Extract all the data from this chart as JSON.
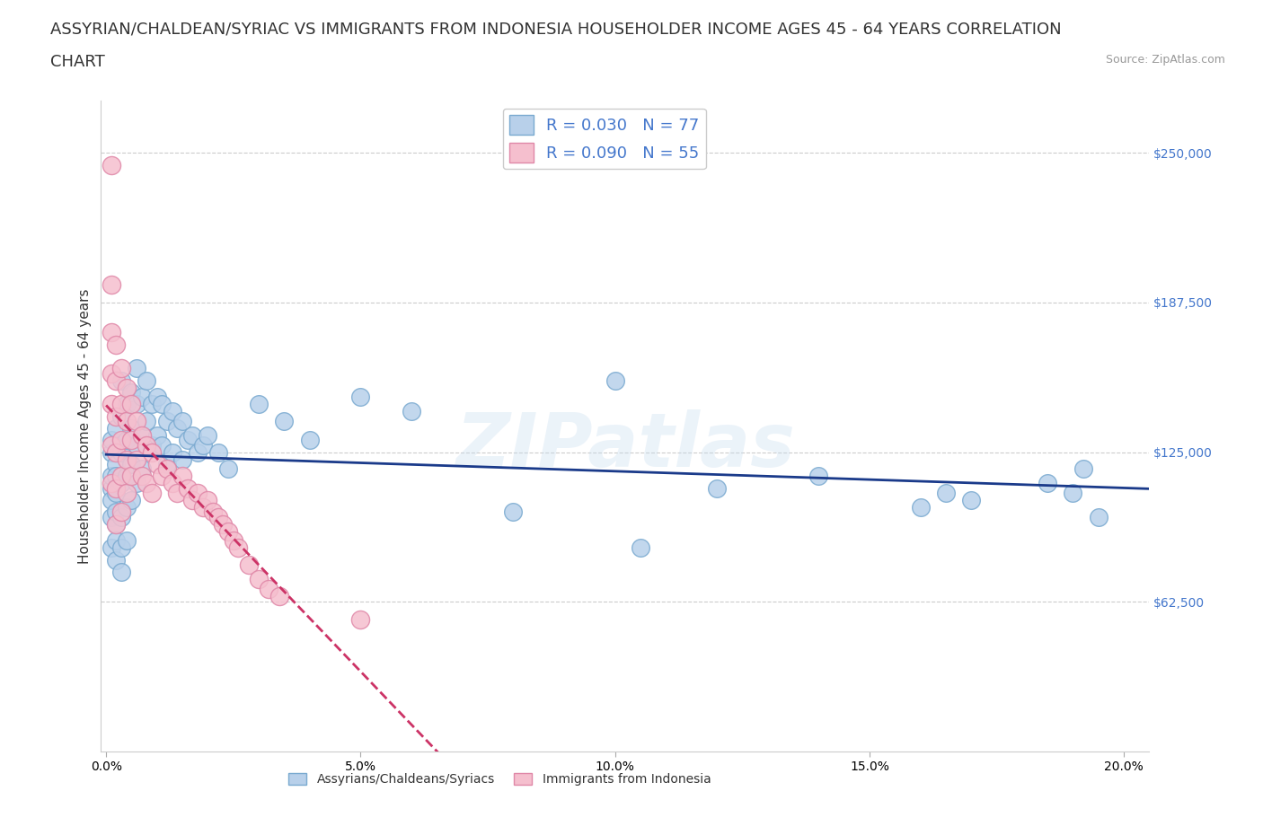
{
  "title_line1": "ASSYRIAN/CHALDEAN/SYRIAC VS IMMIGRANTS FROM INDONESIA HOUSEHOLDER INCOME AGES 45 - 64 YEARS CORRELATION",
  "title_line2": "CHART",
  "source": "Source: ZipAtlas.com",
  "ylabel": "Householder Income Ages 45 - 64 years",
  "xlim": [
    -0.001,
    0.205
  ],
  "ylim": [
    0,
    272000
  ],
  "yticks": [
    0,
    62500,
    125000,
    187500,
    250000
  ],
  "ytick_labels": [
    "",
    "$62,500",
    "$125,000",
    "$187,500",
    "$250,000"
  ],
  "xticks": [
    0.0,
    0.05,
    0.1,
    0.15,
    0.2
  ],
  "xtick_labels": [
    "0.0%",
    "5.0%",
    "10.0%",
    "15.0%",
    "20.0%"
  ],
  "blue_color": "#b8d0ea",
  "blue_edge": "#7aaad0",
  "blue_line_color": "#1a3a8a",
  "pink_color": "#f5bfce",
  "pink_edge": "#e088a8",
  "pink_line_color": "#cc3366",
  "legend_blue_label": "R = 0.030   N = 77",
  "legend_pink_label": "R = 0.090   N = 55",
  "watermark": "ZIPatlas",
  "background_color": "#ffffff",
  "grid_color": "#cccccc",
  "label_color": "#4477cc",
  "title_fontsize": 13,
  "axis_label_fontsize": 11,
  "tick_fontsize": 10,
  "legend_fontsize": 13,
  "blue_x": [
    0.001,
    0.001,
    0.001,
    0.001,
    0.001,
    0.001,
    0.001,
    0.002,
    0.002,
    0.002,
    0.002,
    0.002,
    0.002,
    0.002,
    0.002,
    0.003,
    0.003,
    0.003,
    0.003,
    0.003,
    0.003,
    0.003,
    0.004,
    0.004,
    0.004,
    0.004,
    0.004,
    0.005,
    0.005,
    0.005,
    0.005,
    0.006,
    0.006,
    0.006,
    0.006,
    0.007,
    0.007,
    0.007,
    0.008,
    0.008,
    0.009,
    0.009,
    0.01,
    0.01,
    0.011,
    0.011,
    0.012,
    0.012,
    0.013,
    0.013,
    0.014,
    0.015,
    0.015,
    0.016,
    0.017,
    0.018,
    0.019,
    0.02,
    0.022,
    0.024,
    0.03,
    0.035,
    0.04,
    0.05,
    0.06,
    0.08,
    0.1,
    0.105,
    0.12,
    0.14,
    0.16,
    0.165,
    0.17,
    0.185,
    0.19,
    0.192,
    0.195
  ],
  "blue_y": [
    125000,
    110000,
    98000,
    85000,
    115000,
    130000,
    105000,
    120000,
    135000,
    108000,
    95000,
    80000,
    115000,
    100000,
    88000,
    155000,
    140000,
    125000,
    112000,
    98000,
    85000,
    75000,
    145000,
    130000,
    115000,
    102000,
    88000,
    150000,
    135000,
    120000,
    105000,
    160000,
    145000,
    128000,
    112000,
    148000,
    132000,
    118000,
    155000,
    138000,
    145000,
    128000,
    148000,
    132000,
    145000,
    128000,
    138000,
    120000,
    142000,
    125000,
    135000,
    138000,
    122000,
    130000,
    132000,
    125000,
    128000,
    132000,
    125000,
    118000,
    145000,
    138000,
    130000,
    148000,
    142000,
    100000,
    155000,
    85000,
    110000,
    115000,
    102000,
    108000,
    105000,
    112000,
    108000,
    118000,
    98000
  ],
  "pink_x": [
    0.001,
    0.001,
    0.001,
    0.001,
    0.001,
    0.001,
    0.001,
    0.002,
    0.002,
    0.002,
    0.002,
    0.002,
    0.002,
    0.003,
    0.003,
    0.003,
    0.003,
    0.003,
    0.004,
    0.004,
    0.004,
    0.004,
    0.005,
    0.005,
    0.005,
    0.006,
    0.006,
    0.007,
    0.007,
    0.008,
    0.008,
    0.009,
    0.009,
    0.01,
    0.011,
    0.012,
    0.013,
    0.014,
    0.015,
    0.016,
    0.017,
    0.018,
    0.019,
    0.02,
    0.021,
    0.022,
    0.023,
    0.024,
    0.025,
    0.026,
    0.028,
    0.03,
    0.032,
    0.034,
    0.05
  ],
  "pink_y": [
    245000,
    195000,
    175000,
    158000,
    145000,
    128000,
    112000,
    170000,
    155000,
    140000,
    125000,
    110000,
    95000,
    160000,
    145000,
    130000,
    115000,
    100000,
    152000,
    138000,
    122000,
    108000,
    145000,
    130000,
    115000,
    138000,
    122000,
    132000,
    115000,
    128000,
    112000,
    125000,
    108000,
    120000,
    115000,
    118000,
    112000,
    108000,
    115000,
    110000,
    105000,
    108000,
    102000,
    105000,
    100000,
    98000,
    95000,
    92000,
    88000,
    85000,
    78000,
    72000,
    68000,
    65000,
    55000
  ]
}
